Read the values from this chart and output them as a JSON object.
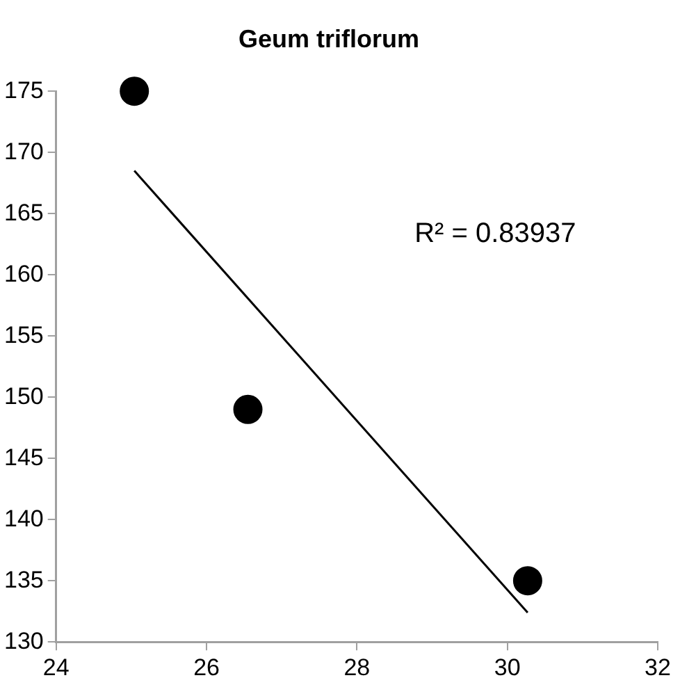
{
  "chart_data": {
    "type": "scatter",
    "title": "Geum triflorum",
    "x": [
      25.04,
      26.55,
      30.27
    ],
    "series": [
      {
        "color": "#000000",
        "values": [
          175,
          149,
          135
        ],
        "marker": "circle"
      },
      {
        "type": "line",
        "color": "#000000",
        "x": [
          25.04,
          30.27
        ],
        "values": [
          168.5,
          132.4
        ],
        "marker": "none"
      }
    ],
    "xlim": [
      24,
      32
    ],
    "xticks": [
      24,
      26,
      28,
      30,
      32
    ],
    "ylim": [
      130,
      175
    ],
    "yticks": [
      130,
      135,
      140,
      145,
      150,
      155,
      160,
      165,
      170,
      175
    ],
    "annotations": [
      "R² = 0.83937"
    ],
    "grid": false,
    "legend": false
  }
}
